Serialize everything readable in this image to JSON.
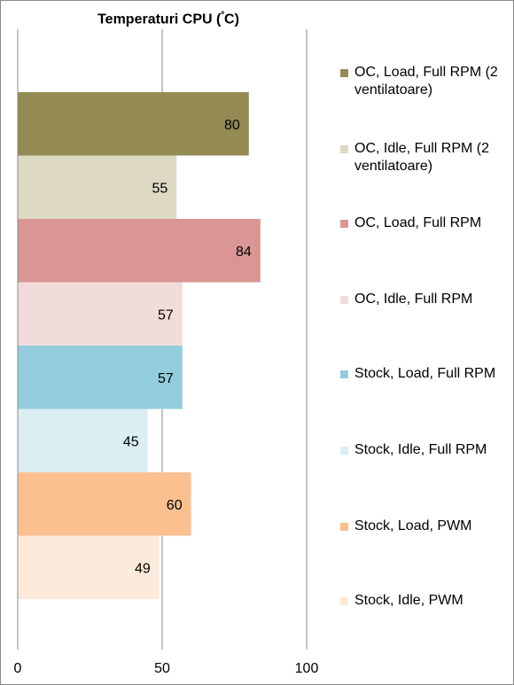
{
  "chart_data": {
    "type": "bar",
    "orientation": "horizontal",
    "title": "Temperaturi CPU (ºC)",
    "title_main": "Temperaturi CPU (",
    "title_degree": "º",
    "title_end": "C)",
    "xlim": [
      0,
      100
    ],
    "x_ticks": [
      0,
      50,
      100
    ],
    "x_tick_labels": [
      "0",
      "50",
      "100"
    ],
    "grid": "vertical",
    "legend_position": "right",
    "series": [
      {
        "name": "OC, Load, Full RPM (2 ventilatoare)",
        "value": 80,
        "color": "#948b54"
      },
      {
        "name": "OC, Idle, Full RPM (2 ventilatoare)",
        "value": 55,
        "color": "#ddd9c3"
      },
      {
        "name": "OC, Load, Full RPM",
        "value": 84,
        "color": "#d99694"
      },
      {
        "name": "OC, Idle, Full RPM",
        "value": 57,
        "color": "#f2dcdb"
      },
      {
        "name": "Stock, Load, Full RPM",
        "value": 57,
        "color": "#93cddd"
      },
      {
        "name": "Stock, Idle, Full RPM",
        "value": 45,
        "color": "#dbeef3"
      },
      {
        "name": "Stock, Load, PWM",
        "value": 60,
        "color": "#fac090"
      },
      {
        "name": "Stock, Idle, PWM",
        "value": 49,
        "color": "#fdeada"
      }
    ]
  }
}
